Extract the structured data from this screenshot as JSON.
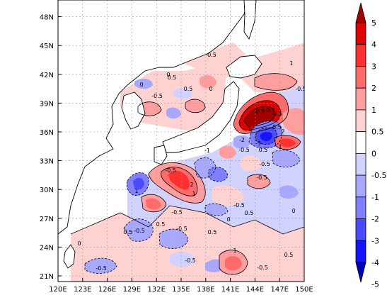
{
  "map": {
    "lon_ticks": [
      "120E",
      "123E",
      "126E",
      "129E",
      "132E",
      "135E",
      "138E",
      "141E",
      "144E",
      "147E",
      "150E"
    ],
    "lat_ticks": [
      "21N",
      "24N",
      "27N",
      "30N",
      "33N",
      "36N",
      "39N",
      "42N",
      "45N",
      "48N"
    ],
    "contour_labels": [
      "0",
      "0",
      "0",
      "0.5",
      "-0.5",
      "0.5",
      "-0.5",
      "1",
      "-0.5",
      "-0.5",
      "0.5",
      "-0.5",
      "-0.5",
      "1",
      "2",
      "-2",
      "-3",
      "-0.5",
      "-1",
      "2",
      "1",
      "-0.5",
      "0.5",
      "-0.5",
      "-0.5",
      "0.5",
      "-0.5",
      "0.5",
      "-0.5",
      "1",
      "-0.5",
      "0.5",
      "0",
      "-0.5",
      "0",
      "0.5",
      "1",
      "-0.5",
      "-0.5",
      "-0.5",
      "0.5",
      "1",
      "0"
    ]
  },
  "colorbar": {
    "labels": [
      "5",
      "4",
      "3",
      "2",
      "1",
      "0.5",
      "0",
      "-0.5",
      "-1",
      "-2",
      "-3",
      "-4",
      "-5"
    ],
    "colors": [
      "#a50000",
      "#e00000",
      "#ff3030",
      "#ff6a6a",
      "#ff9e9e",
      "#ffd2d2",
      "#ffffff",
      "#d2d2ff",
      "#a8a8ff",
      "#7f7fff",
      "#4a4aff",
      "#1414ff",
      "#0000c0"
    ]
  }
}
